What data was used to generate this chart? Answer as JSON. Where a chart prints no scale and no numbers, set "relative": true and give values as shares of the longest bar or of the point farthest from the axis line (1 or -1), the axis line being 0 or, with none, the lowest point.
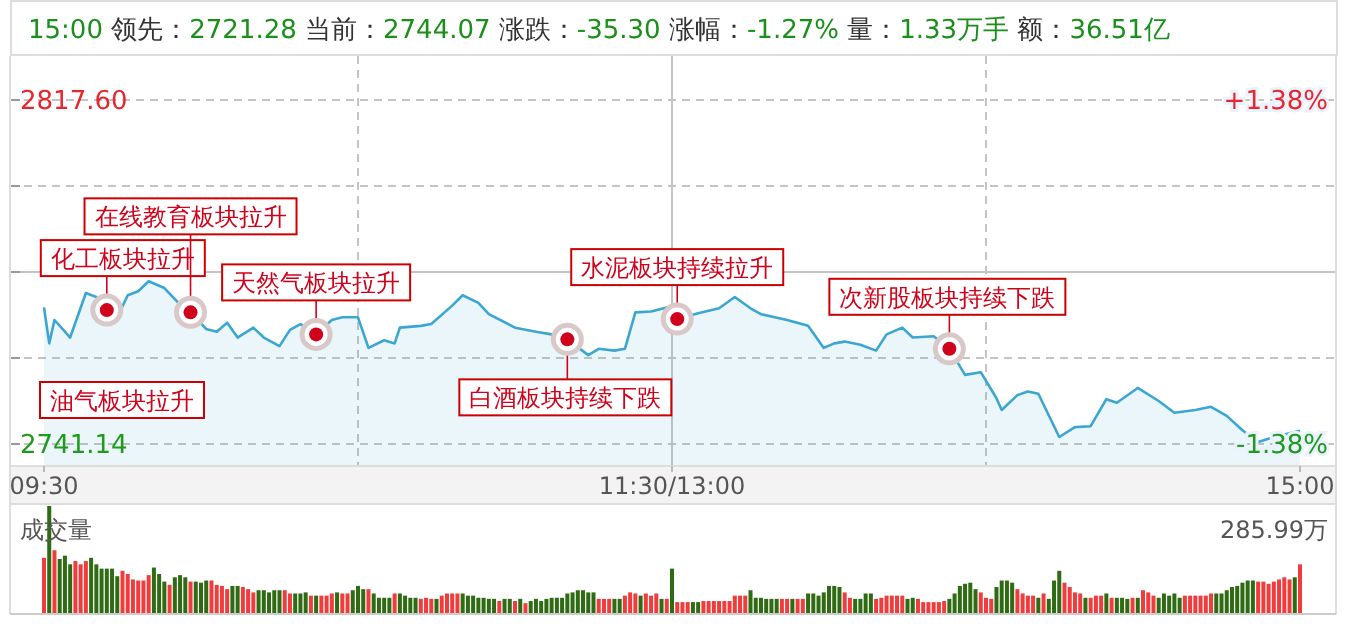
{
  "chart_data": [
    {
      "type": "area",
      "title": "15:00 领先：2721.28 当前：2744.07 涨跌：-35.30 涨幅：-1.27% 量：1.33万手 额：36.51亿",
      "color": "#3aa6d1",
      "grid": true,
      "categories": [
        "09:30",
        null,
        null,
        null,
        null,
        null,
        null,
        null,
        null,
        null,
        null,
        null,
        null,
        null,
        null,
        null,
        null,
        null,
        null,
        null,
        null,
        null,
        null,
        null,
        null,
        null,
        null,
        null,
        null,
        null,
        null,
        null,
        null,
        null,
        null,
        null,
        null,
        null,
        null,
        null,
        null,
        null,
        null,
        null,
        null,
        null,
        null,
        null,
        null,
        null,
        null,
        null,
        null,
        null,
        null,
        null,
        null,
        null,
        null,
        null,
        null,
        null,
        null,
        null,
        null,
        null,
        null,
        null,
        null,
        null,
        null,
        null,
        null,
        null,
        null,
        null,
        null,
        null,
        null,
        null,
        null,
        null,
        null,
        null,
        null,
        null,
        null,
        null,
        null,
        null,
        null,
        null,
        null,
        null,
        null,
        null,
        null,
        null,
        null,
        null,
        null,
        null,
        null,
        null,
        null,
        null,
        null,
        null,
        null,
        null,
        null,
        null,
        null,
        null,
        null,
        null,
        null,
        null,
        null,
        null,
        "11:30/13:00",
        null,
        null,
        null,
        null,
        null,
        null,
        null,
        null,
        null,
        null,
        null,
        null,
        null,
        null,
        null,
        null,
        null,
        null,
        null,
        null,
        null,
        null,
        null,
        null,
        null,
        null,
        null,
        null,
        null,
        null,
        null,
        null,
        null,
        null,
        null,
        null,
        null,
        null,
        null,
        null,
        null,
        null,
        null,
        null,
        null,
        null,
        null,
        null,
        null,
        null,
        null,
        null,
        null,
        null,
        null,
        null,
        null,
        null,
        null,
        null,
        null,
        null,
        null,
        null,
        null,
        null,
        null,
        null,
        null,
        null,
        null,
        null,
        null,
        null,
        null,
        null,
        null,
        null,
        null,
        null,
        null,
        null,
        null,
        null,
        null,
        null,
        null,
        null,
        null,
        null,
        null,
        null,
        null,
        null,
        null,
        null,
        null,
        null,
        null,
        null,
        null,
        null,
        null,
        null,
        null,
        null,
        null,
        null,
        null,
        null,
        null,
        null,
        null,
        null,
        null,
        null,
        null,
        null,
        null,
        "15:00"
      ],
      "values": [
        2771.5,
        2763.5,
        2768.7,
        null,
        2766.1,
        2764.8,
        null,
        null,
        2774.7,
        null,
        2773.8,
        null,
        2770.9,
        null,
        2769.3,
        null,
        2774.2,
        null,
        2775.1,
        null,
        2777.3,
        null,
        null,
        2775.8,
        null,
        null,
        2772.1,
        null,
        2770.4,
        null,
        null,
        2766.7,
        null,
        2766.1,
        null,
        2768.1,
        null,
        2764.8,
        null,
        null,
        2767.0,
        null,
        2764.8,
        null,
        null,
        2762.9,
        null,
        2766.5,
        null,
        2767.8,
        null,
        null,
        2765.5,
        null,
        null,
        2768.7,
        null,
        2769.3,
        null,
        null,
        2769.3,
        null,
        2762.5,
        null,
        null,
        2764.2,
        null,
        2763.5,
        2767.0,
        null,
        null,
        null,
        2767.4,
        null,
        2767.8,
        null,
        null,
        null,
        2771.9,
        null,
        2774.2,
        null,
        null,
        2772.5,
        null,
        2770.0,
        null,
        null,
        null,
        null,
        2767.0,
        null,
        null,
        null,
        2766.1,
        null,
        null,
        2765.5,
        null,
        null,
        2764.4,
        null,
        null,
        null,
        2760.9,
        null,
        2762.3,
        null,
        null,
        2761.9,
        null,
        2762.3,
        null,
        2770.4,
        null,
        null,
        2770.6,
        null,
        null,
        2771.5,
        null,
        2768.9,
        null,
        null,
        null,
        2770.2,
        null,
        null,
        null,
        2771.3,
        null,
        null,
        2773.8,
        null,
        null,
        2771.3,
        null,
        2770.0,
        null,
        null,
        null,
        null,
        2768.7,
        null,
        null,
        null,
        2767.4,
        null,
        null,
        2762.5,
        null,
        2763.5,
        null,
        2763.9,
        null,
        null,
        2763.2,
        null,
        null,
        2761.9,
        null,
        2765.5,
        null,
        null,
        2767.0,
        null,
        2764.8,
        null,
        null,
        null,
        2765.1,
        null,
        null,
        2762.3,
        null,
        null,
        2756.5,
        null,
        null,
        2757.1,
        null,
        null,
        2751.3,
        2748.7,
        null,
        null,
        2752.0,
        null,
        2752.8,
        null,
        2752.3,
        null,
        null,
        null,
        2742.7,
        null,
        null,
        2744.9,
        null,
        null,
        2745.1,
        null,
        null,
        2751.1,
        null,
        2750.3,
        null,
        null,
        null,
        2753.6,
        null,
        null,
        null,
        2750.7,
        null,
        null,
        2748.1,
        null,
        null,
        null,
        2748.7,
        null,
        null,
        2749.4,
        null,
        null,
        2747.4,
        null,
        null,
        2744.2,
        null,
        null,
        2741.6,
        null,
        null,
        2742.7,
        null,
        null,
        null,
        null,
        2744.1
      ],
      "ylim": [
        2741.14,
        2817.6
      ],
      "yticks": [
        {
          "value": 2817.6,
          "label": "2817.60"
        },
        {
          "value": 2798.49,
          "label": null
        },
        {
          "value": 2779.37,
          "label": null
        },
        {
          "value": 2760.26,
          "label": null
        },
        {
          "value": 2741.14,
          "label": "2741.14"
        }
      ],
      "y2lim": [
        -1.38,
        1.38
      ],
      "y2ticks": [
        {
          "value": 1.38,
          "label": "+1.38%"
        },
        {
          "value": -1.38,
          "label": "-1.38%"
        }
      ],
      "annotations": [
        "油气板块拉升",
        {
          "text": "化工板块拉升",
          "y": 2770.9
        },
        {
          "text": "在线教育板块拉升",
          "y": 2770.4
        },
        {
          "text": "天然气板块拉升",
          "y": 2765.5
        },
        {
          "text": "白酒板块持续下跌",
          "y": 2764.4
        },
        {
          "text": "水泥板块持续拉升",
          "y": 2768.9
        },
        {
          "text": "次新股板块持续下跌",
          "y": 2762.3
        }
      ]
    },
    {
      "type": "bar",
      "title": "成交量",
      "relative": true,
      "annotations": [
        "285.99万"
      ],
      "categories": [
        null,
        null,
        null,
        null,
        null,
        null,
        null,
        null,
        null,
        null,
        null,
        null,
        null,
        null,
        null,
        null,
        null,
        null,
        null,
        null,
        null,
        null,
        null,
        null,
        null,
        null,
        null,
        null,
        null,
        null,
        null,
        null,
        null,
        null,
        null,
        null,
        null,
        null,
        null,
        null,
        null,
        null,
        null,
        null,
        null,
        null,
        null,
        null,
        null,
        null,
        null,
        null,
        null,
        null,
        null,
        null,
        null,
        null,
        null,
        null,
        null,
        null,
        null,
        null,
        null,
        null,
        null,
        null,
        null,
        null,
        null,
        null,
        null,
        null,
        null,
        null,
        null,
        null,
        null,
        null,
        null,
        null,
        null,
        null,
        null,
        null,
        null,
        null,
        null,
        null,
        null,
        null,
        null,
        null,
        null,
        null,
        null,
        null,
        null,
        null,
        null,
        null,
        null,
        null,
        null,
        null,
        null,
        null,
        null,
        null,
        null,
        null,
        null,
        null,
        null,
        null,
        null,
        null,
        null,
        null,
        null,
        null,
        null,
        null,
        null,
        null,
        null,
        null,
        null,
        null,
        null,
        null,
        null,
        null,
        null,
        null,
        null,
        null,
        null,
        null,
        null,
        null,
        null,
        null,
        null,
        null,
        null,
        null,
        null,
        null,
        null,
        null,
        null,
        null,
        null,
        null,
        null,
        null,
        null,
        null,
        null,
        null,
        null,
        null,
        null,
        null,
        null,
        null,
        null,
        null,
        null,
        null,
        null,
        null,
        null,
        null,
        null,
        null,
        null,
        null,
        null,
        null,
        null,
        null,
        null,
        null,
        null,
        null,
        null,
        null,
        null,
        null,
        null,
        null,
        null,
        null,
        null,
        null,
        null,
        null,
        null,
        null,
        null,
        null,
        null,
        null,
        null,
        null,
        null,
        null,
        null,
        null,
        null,
        null,
        null,
        null,
        null,
        null,
        null,
        null,
        null,
        null,
        null,
        null,
        null,
        null,
        null,
        null,
        null,
        null,
        null,
        null,
        null,
        null,
        null,
        null,
        null,
        null,
        null,
        null,
        null
      ],
      "values": [
        0.52,
        1,
        0.59,
        0.51,
        0.54,
        0.46,
        0.49,
        0.46,
        0.49,
        0.52,
        0.46,
        0.42,
        0.42,
        0.42,
        0.35,
        0.4,
        0.37,
        0.32,
        0.31,
        0.31,
        0.36,
        0.43,
        0.37,
        0.3,
        0.27,
        0.34,
        0.36,
        0.34,
        0.3,
        0.3,
        0.29,
        0.31,
        0.31,
        0.27,
        0.26,
        0.23,
        0.26,
        0.26,
        0.25,
        0.23,
        0.2,
        0.22,
        0.22,
        0.2,
        0.22,
        0.22,
        0.22,
        0.19,
        0.19,
        0.19,
        0.2,
        0.17,
        0.17,
        0.17,
        0.17,
        0.19,
        0.2,
        0.19,
        0.19,
        0.22,
        0.26,
        0.23,
        0.23,
        0.19,
        0.15,
        0.15,
        0.15,
        0.19,
        0.19,
        0.17,
        0.15,
        0.15,
        0.14,
        0.15,
        0.14,
        0.14,
        0.17,
        0.19,
        0.19,
        0.19,
        0.19,
        0.17,
        0.17,
        0.15,
        0.15,
        0.14,
        0.14,
        0.12,
        0.14,
        0.14,
        0.12,
        0.14,
        0.1,
        0.12,
        0.14,
        0.12,
        0.14,
        0.15,
        0.15,
        0.15,
        0.19,
        0.2,
        0.22,
        0.22,
        0.2,
        0.2,
        0.14,
        0.14,
        0.14,
        0.14,
        0.14,
        0.17,
        0.2,
        0.19,
        0.17,
        0.19,
        0.17,
        0.19,
        0.14,
        0.14,
        0.42,
        0.11,
        0.11,
        0.11,
        0.11,
        0.11,
        0.12,
        0.12,
        0.12,
        0.12,
        0.12,
        0.12,
        0.17,
        0.17,
        0.17,
        0.22,
        0.15,
        0.15,
        0.14,
        0.14,
        0.14,
        0.14,
        0.14,
        0.14,
        0.14,
        0.14,
        0.19,
        0.19,
        0.17,
        0.2,
        0.26,
        0.26,
        0.25,
        0.2,
        0.15,
        0.14,
        0.14,
        0.19,
        0.19,
        0.14,
        0.15,
        0.17,
        0.17,
        0.17,
        0.17,
        0.14,
        0.15,
        0.14,
        0.11,
        0.11,
        0.11,
        0.11,
        0.12,
        0.14,
        0.19,
        0.26,
        0.28,
        0.29,
        0.23,
        0.2,
        0.15,
        0.14,
        0.25,
        0.31,
        0.31,
        0.29,
        0.23,
        0.19,
        0.17,
        0.17,
        0.15,
        0.19,
        0.14,
        0.31,
        0.4,
        0.29,
        0.25,
        0.2,
        0.19,
        0.15,
        0.15,
        0.17,
        0.17,
        0.19,
        0.15,
        0.15,
        0.15,
        0.14,
        0.15,
        0.15,
        0.22,
        0.2,
        0.17,
        0.15,
        0.19,
        0.17,
        0.19,
        0.15,
        0.17,
        0.17,
        0.17,
        0.17,
        0.17,
        0.19,
        0.19,
        0.19,
        0.22,
        0.25,
        0.26,
        0.29,
        0.31,
        0.31,
        0.3,
        0.3,
        0.28,
        0.3,
        0.32,
        0.34,
        0.32,
        0.34,
        0.46
      ],
      "colors": [
        "#f03c3c",
        "#2e6b12",
        "#f03c3c",
        "#2e6b12",
        "#2e6b12",
        "#2e6b12",
        "#f03c3c",
        "#f03c3c",
        "#f03c3c",
        "#2e6b12",
        "#2e6b12",
        "#2e6b12",
        "#2e6b12",
        "#2e6b12",
        "#2e6b12",
        "#f03c3c",
        "#f03c3c",
        "#f03c3c",
        "#f03c3c",
        "#f03c3c",
        "#f03c3c",
        "#2e6b12",
        "#2e6b12",
        "#2e6b12",
        "#f03c3c",
        "#2e6b12",
        "#2e6b12",
        "#2e6b12",
        "#f03c3c",
        "#2e6b12",
        "#2e6b12",
        "#2e6b12",
        "#f03c3c",
        "#f03c3c",
        "#f03c3c",
        "#f03c3c",
        "#2e6b12",
        "#2e6b12",
        "#f03c3c",
        "#f03c3c",
        "#f03c3c",
        "#2e6b12",
        "#2e6b12",
        "#2e6b12",
        "#2e6b12",
        "#2e6b12",
        "#f03c3c",
        "#f03c3c",
        "#2e6b12",
        "#2e6b12",
        "#2e6b12",
        "#f03c3c",
        "#2e6b12",
        "#f03c3c",
        "#f03c3c",
        "#f03c3c",
        "#2e6b12",
        "#f03c3c",
        "#f03c3c",
        "#2e6b12",
        "#2e6b12",
        "#2e6b12",
        "#f03c3c",
        "#2e6b12",
        "#2e6b12",
        "#2e6b12",
        "#2e6b12",
        "#f03c3c",
        "#2e6b12",
        "#2e6b12",
        "#2e6b12",
        "#2e6b12",
        "#f03c3c",
        "#f03c3c",
        "#f03c3c",
        "#2e6b12",
        "#f03c3c",
        "#f03c3c",
        "#f03c3c",
        "#f03c3c",
        "#2e6b12",
        "#2e6b12",
        "#2e6b12",
        "#2e6b12",
        "#2e6b12",
        "#2e6b12",
        "#2e6b12",
        "#f03c3c",
        "#2e6b12",
        "#2e6b12",
        "#f03c3c",
        "#2e6b12",
        "#f03c3c",
        "#2e6b12",
        "#2e6b12",
        "#2e6b12",
        "#2e6b12",
        "#2e6b12",
        "#2e6b12",
        "#2e6b12",
        "#2e6b12",
        "#2e6b12",
        "#2e6b12",
        "#2e6b12",
        "#2e6b12",
        "#2e6b12",
        "#f03c3c",
        "#f03c3c",
        "#f03c3c",
        "#2e6b12",
        "#2e6b12",
        "#f03c3c",
        "#f03c3c",
        "#f03c3c",
        "#2e6b12",
        "#f03c3c",
        "#f03c3c",
        "#f03c3c",
        "#2e6b12",
        "#f03c3c",
        "#2e6b12",
        "#f03c3c",
        "#f03c3c",
        "#f03c3c",
        "#2e6b12",
        "#2e6b12",
        "#f03c3c",
        "#f03c3c",
        "#f03c3c",
        "#f03c3c",
        "#f03c3c",
        "#f03c3c",
        "#f03c3c",
        "#f03c3c",
        "#f03c3c",
        "#2e6b12",
        "#2e6b12",
        "#2e6b12",
        "#2e6b12",
        "#2e6b12",
        "#2e6b12",
        "#f03c3c",
        "#f03c3c",
        "#2e6b12",
        "#f03c3c",
        "#f03c3c",
        "#2e6b12",
        "#2e6b12",
        "#2e6b12",
        "#2e6b12",
        "#2e6b12",
        "#2e6b12",
        "#2e6b12",
        "#f03c3c",
        "#f03c3c",
        "#2e6b12",
        "#2e6b12",
        "#2e6b12",
        "#2e6b12",
        "#f03c3c",
        "#f03c3c",
        "#f03c3c",
        "#f03c3c",
        "#f03c3c",
        "#f03c3c",
        "#2e6b12",
        "#2e6b12",
        "#f03c3c",
        "#f03c3c",
        "#f03c3c",
        "#f03c3c",
        "#f03c3c",
        "#f03c3c",
        "#2e6b12",
        "#2e6b12",
        "#2e6b12",
        "#2e6b12",
        "#2e6b12",
        "#2e6b12",
        "#f03c3c",
        "#f03c3c",
        "#f03c3c",
        "#2e6b12",
        "#2e6b12",
        "#2e6b12",
        "#2e6b12",
        "#f03c3c",
        "#f03c3c",
        "#f03c3c",
        "#f03c3c",
        "#2e6b12",
        "#f03c3c",
        "#2e6b12",
        "#2e6b12",
        "#2e6b12",
        "#f03c3c",
        "#f03c3c",
        "#f03c3c",
        "#f03c3c",
        "#2e6b12",
        "#f03c3c",
        "#f03c3c",
        "#f03c3c",
        "#2e6b12",
        "#f03c3c",
        "#2e6b12",
        "#2e6b12",
        "#2e6b12",
        "#f03c3c",
        "#2e6b12",
        "#f03c3c",
        "#f03c3c",
        "#f03c3c",
        "#2e6b12",
        "#2e6b12",
        "#2e6b12",
        "#2e6b12",
        "#2e6b12",
        "#f03c3c",
        "#f03c3c",
        "#f03c3c",
        "#f03c3c",
        "#f03c3c",
        "#f03c3c",
        "#2e6b12",
        "#2e6b12",
        "#2e6b12",
        "#2e6b12",
        "#2e6b12",
        "#2e6b12",
        "#2e6b12",
        "#2e6b12",
        "#f03c3c",
        "#f03c3c",
        "#f03c3c",
        "#f03c3c",
        "#f03c3c",
        "#f03c3c",
        "#f03c3c",
        "#2e6b12",
        "#f03c3c"
      ]
    }
  ]
}
